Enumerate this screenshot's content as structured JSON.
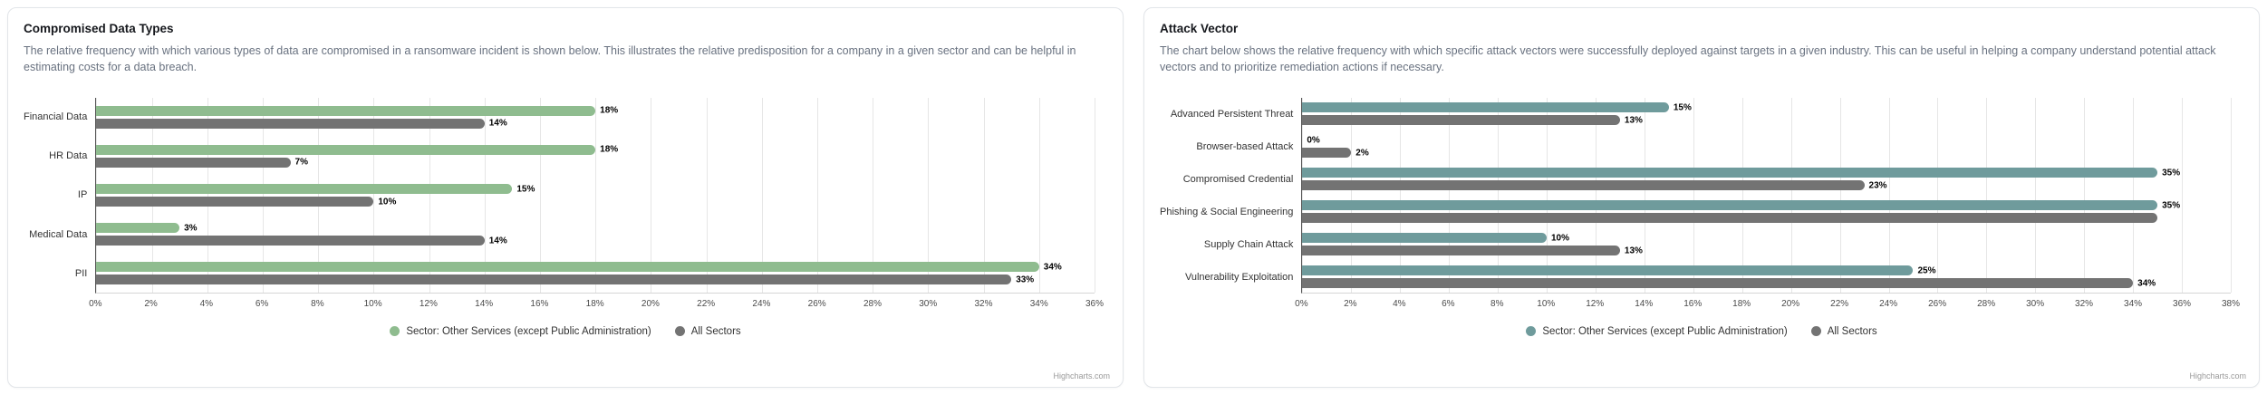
{
  "panels": [
    {
      "title": "Compromised Data Types",
      "description": "The relative frequency with which various types of data are compromised in a ransomware incident is shown below. This illustrates the relative predisposition for a company in a given sector and can be helpful in estimating costs for a data breach.",
      "credit": "Highcharts.com"
    },
    {
      "title": "Attack Vector",
      "description": "The chart below shows the relative frequency with which specific attack vectors were successfully deployed against targets in a given industry. This can be useful in helping a company understand potential attack vectors and to prioritize remediation actions if necessary.",
      "credit": "Highcharts.com"
    }
  ],
  "chart_data": [
    {
      "type": "bar",
      "orientation": "horizontal",
      "title": "Compromised Data Types",
      "categories": [
        "Financial Data",
        "HR Data",
        "IP",
        "Medical Data",
        "PII"
      ],
      "series": [
        {
          "name": "Sector: Other Services (except Public Administration)",
          "color": "#8FBC8F",
          "values": [
            18,
            18,
            15,
            3,
            34
          ],
          "labels": [
            "18%",
            "18%",
            "15%",
            "3%",
            "34%"
          ]
        },
        {
          "name": "All Sectors",
          "color": "#737373",
          "values": [
            14,
            7,
            10,
            14,
            33
          ],
          "labels": [
            "14%",
            "7%",
            "10%",
            "14%",
            "33%"
          ]
        }
      ],
      "xaxis": {
        "min": 0,
        "max": 36,
        "tick_step": 2,
        "unit": "%",
        "tick_labels": [
          "0%",
          "2%",
          "4%",
          "6%",
          "8%",
          "10%",
          "12%",
          "14%",
          "16%",
          "18%",
          "20%",
          "22%",
          "24%",
          "26%",
          "28%",
          "30%",
          "32%",
          "34%",
          "36%"
        ]
      },
      "grid": true,
      "legend_position": "bottom-center"
    },
    {
      "type": "bar",
      "orientation": "horizontal",
      "title": "Attack Vector",
      "categories": [
        "Advanced Persistent Threat",
        "Browser-based Attack",
        "Compromised Credential",
        "Phishing & Social Engineering",
        "Supply Chain Attack",
        "Vulnerability Exploitation"
      ],
      "series": [
        {
          "name": "Sector: Other Services (except Public Administration)",
          "color": "#6F9B9C",
          "values": [
            15,
            0,
            35,
            35,
            10,
            25
          ],
          "labels": [
            "15%",
            "0%",
            "35%",
            "35%",
            "10%",
            "25%"
          ]
        },
        {
          "name": "All Sectors",
          "color": "#737373",
          "values": [
            13,
            2,
            23,
            35,
            13,
            34
          ],
          "labels": [
            "13%",
            "2%",
            "23%",
            "",
            "13%",
            "34%"
          ]
        }
      ],
      "xaxis": {
        "min": 0,
        "max": 38,
        "tick_step": 2,
        "unit": "%",
        "tick_labels": [
          "0%",
          "2%",
          "4%",
          "6%",
          "8%",
          "10%",
          "12%",
          "14%",
          "16%",
          "18%",
          "20%",
          "22%",
          "24%",
          "26%",
          "28%",
          "30%",
          "32%",
          "34%",
          "36%",
          "38%"
        ]
      },
      "grid": true,
      "legend_position": "bottom-center"
    }
  ]
}
